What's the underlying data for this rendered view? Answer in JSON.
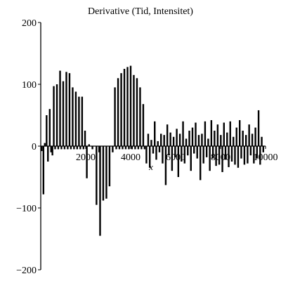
{
  "chart_data": {
    "type": "line",
    "title": "Derivative (Tid, Intensitet)",
    "xlabel": "x",
    "ylabel": "",
    "xlim": [
      0,
      10000
    ],
    "ylim": [
      -200,
      200
    ],
    "x_ticks": [
      2000,
      4000,
      6000,
      8000,
      10000
    ],
    "x_tick_labels": [
      "2000",
      "4000",
      "6000",
      "8000",
      "10000"
    ],
    "y_ticks": [
      -200,
      -100,
      0,
      100,
      200
    ],
    "y_tick_labels": [
      "−200",
      "−100",
      "0",
      "100",
      "200"
    ],
    "grid": false,
    "legend": "none",
    "series": [
      {
        "spikes": [
          {
            "x": 40,
            "y": -8
          },
          {
            "x": 120,
            "y": -78
          },
          {
            "x": 180,
            "y": 5
          },
          {
            "x": 260,
            "y": 50
          },
          {
            "x": 320,
            "y": -25
          },
          {
            "x": 400,
            "y": 60
          },
          {
            "x": 460,
            "y": -10
          },
          {
            "x": 520,
            "y": -15
          },
          {
            "x": 580,
            "y": 97
          },
          {
            "x": 640,
            "y": -5
          },
          {
            "x": 720,
            "y": 100
          },
          {
            "x": 780,
            "y": -5
          },
          {
            "x": 860,
            "y": 122
          },
          {
            "x": 920,
            "y": -5
          },
          {
            "x": 1000,
            "y": 105
          },
          {
            "x": 1060,
            "y": -5
          },
          {
            "x": 1140,
            "y": 120
          },
          {
            "x": 1200,
            "y": -5
          },
          {
            "x": 1280,
            "y": 118
          },
          {
            "x": 1340,
            "y": -5
          },
          {
            "x": 1420,
            "y": 95
          },
          {
            "x": 1480,
            "y": -5
          },
          {
            "x": 1560,
            "y": 88
          },
          {
            "x": 1620,
            "y": -5
          },
          {
            "x": 1700,
            "y": 80
          },
          {
            "x": 1760,
            "y": -5
          },
          {
            "x": 1840,
            "y": 80
          },
          {
            "x": 1900,
            "y": -5
          },
          {
            "x": 1970,
            "y": 25
          },
          {
            "x": 2050,
            "y": -52
          },
          {
            "x": 2150,
            "y": 3
          },
          {
            "x": 2300,
            "y": -5
          },
          {
            "x": 2480,
            "y": -95
          },
          {
            "x": 2600,
            "y": -10
          },
          {
            "x": 2640,
            "y": -145
          },
          {
            "x": 2780,
            "y": -88
          },
          {
            "x": 2920,
            "y": -85
          },
          {
            "x": 3060,
            "y": -65
          },
          {
            "x": 3200,
            "y": -10
          },
          {
            "x": 3300,
            "y": 95
          },
          {
            "x": 3360,
            "y": -5
          },
          {
            "x": 3440,
            "y": 110
          },
          {
            "x": 3500,
            "y": -5
          },
          {
            "x": 3580,
            "y": 118
          },
          {
            "x": 3640,
            "y": -5
          },
          {
            "x": 3720,
            "y": 125
          },
          {
            "x": 3780,
            "y": -5
          },
          {
            "x": 3860,
            "y": 128
          },
          {
            "x": 3920,
            "y": -5
          },
          {
            "x": 4000,
            "y": 130
          },
          {
            "x": 4060,
            "y": -5
          },
          {
            "x": 4140,
            "y": 115
          },
          {
            "x": 4200,
            "y": -5
          },
          {
            "x": 4280,
            "y": 110
          },
          {
            "x": 4340,
            "y": -5
          },
          {
            "x": 4420,
            "y": 95
          },
          {
            "x": 4480,
            "y": -5
          },
          {
            "x": 4560,
            "y": 68
          },
          {
            "x": 4620,
            "y": -5
          },
          {
            "x": 4700,
            "y": -28
          },
          {
            "x": 4780,
            "y": 20
          },
          {
            "x": 4850,
            "y": -35
          },
          {
            "x": 4920,
            "y": 10
          },
          {
            "x": 5000,
            "y": -12
          },
          {
            "x": 5070,
            "y": 40
          },
          {
            "x": 5140,
            "y": -22
          },
          {
            "x": 5210,
            "y": 8
          },
          {
            "x": 5280,
            "y": -10
          },
          {
            "x": 5350,
            "y": 20
          },
          {
            "x": 5420,
            "y": -28
          },
          {
            "x": 5490,
            "y": 18
          },
          {
            "x": 5560,
            "y": -63
          },
          {
            "x": 5630,
            "y": 35
          },
          {
            "x": 5700,
            "y": -15
          },
          {
            "x": 5770,
            "y": 22
          },
          {
            "x": 5840,
            "y": -40
          },
          {
            "x": 5910,
            "y": 15
          },
          {
            "x": 5980,
            "y": -18
          },
          {
            "x": 6050,
            "y": 28
          },
          {
            "x": 6120,
            "y": -50
          },
          {
            "x": 6190,
            "y": 20
          },
          {
            "x": 6260,
            "y": -25
          },
          {
            "x": 6330,
            "y": 40
          },
          {
            "x": 6400,
            "y": -28
          },
          {
            "x": 6470,
            "y": 12
          },
          {
            "x": 6540,
            "y": -15
          },
          {
            "x": 6610,
            "y": 25
          },
          {
            "x": 6680,
            "y": -40
          },
          {
            "x": 6750,
            "y": 30
          },
          {
            "x": 6820,
            "y": -12
          },
          {
            "x": 6890,
            "y": 38
          },
          {
            "x": 6960,
            "y": -20
          },
          {
            "x": 7030,
            "y": 18
          },
          {
            "x": 7100,
            "y": -55
          },
          {
            "x": 7170,
            "y": 20
          },
          {
            "x": 7240,
            "y": -28
          },
          {
            "x": 7310,
            "y": 40
          },
          {
            "x": 7380,
            "y": -18
          },
          {
            "x": 7450,
            "y": 12
          },
          {
            "x": 7520,
            "y": -40
          },
          {
            "x": 7590,
            "y": 42
          },
          {
            "x": 7660,
            "y": -20
          },
          {
            "x": 7730,
            "y": 25
          },
          {
            "x": 7800,
            "y": -32
          },
          {
            "x": 7870,
            "y": 35
          },
          {
            "x": 7940,
            "y": -30
          },
          {
            "x": 8010,
            "y": 18
          },
          {
            "x": 8080,
            "y": -42
          },
          {
            "x": 8150,
            "y": 38
          },
          {
            "x": 8220,
            "y": -22
          },
          {
            "x": 8290,
            "y": 22
          },
          {
            "x": 8360,
            "y": -34
          },
          {
            "x": 8430,
            "y": 40
          },
          {
            "x": 8500,
            "y": -25
          },
          {
            "x": 8570,
            "y": 15
          },
          {
            "x": 8640,
            "y": -30
          },
          {
            "x": 8710,
            "y": 30
          },
          {
            "x": 8780,
            "y": -35
          },
          {
            "x": 8850,
            "y": 42
          },
          {
            "x": 8920,
            "y": -20
          },
          {
            "x": 8990,
            "y": 25
          },
          {
            "x": 9060,
            "y": -30
          },
          {
            "x": 9130,
            "y": 18
          },
          {
            "x": 9200,
            "y": -28
          },
          {
            "x": 9270,
            "y": 35
          },
          {
            "x": 9340,
            "y": -15
          },
          {
            "x": 9410,
            "y": 20
          },
          {
            "x": 9480,
            "y": -28
          },
          {
            "x": 9550,
            "y": 30
          },
          {
            "x": 9620,
            "y": -20
          },
          {
            "x": 9690,
            "y": 58
          },
          {
            "x": 9760,
            "y": -30
          },
          {
            "x": 9830,
            "y": 15
          },
          {
            "x": 9900,
            "y": -10
          }
        ]
      }
    ]
  }
}
